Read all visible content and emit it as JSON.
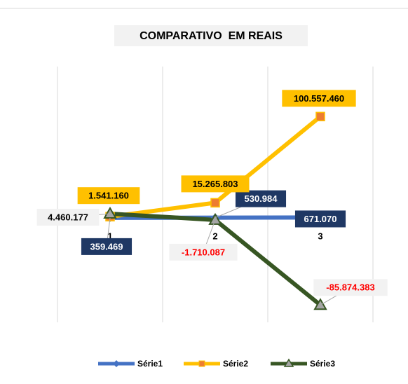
{
  "chart_data": {
    "type": "line",
    "title": "COMPARATIVO  EM REAIS",
    "categories": [
      "1",
      "2",
      "3"
    ],
    "series": [
      {
        "name": "Série1",
        "color": "#4472c4",
        "values": [
          359469,
          530984,
          671070
        ],
        "value_labels": [
          "359.469",
          "530.984",
          "671.070"
        ]
      },
      {
        "name": "Série2",
        "color": "#ffc000",
        "values": [
          1541160,
          15265803,
          100557460
        ],
        "value_labels": [
          "1.541.160",
          "15.265.803",
          "100.557.460"
        ]
      },
      {
        "name": "Série3",
        "color": "#375623",
        "values": [
          4460177,
          -1710087,
          -85874383
        ],
        "value_labels": [
          "4.460.177",
          "-1.710.087",
          "-85.874.383"
        ]
      }
    ],
    "ylim": [
      -103000000,
      150000000
    ],
    "legend": "bottom"
  }
}
